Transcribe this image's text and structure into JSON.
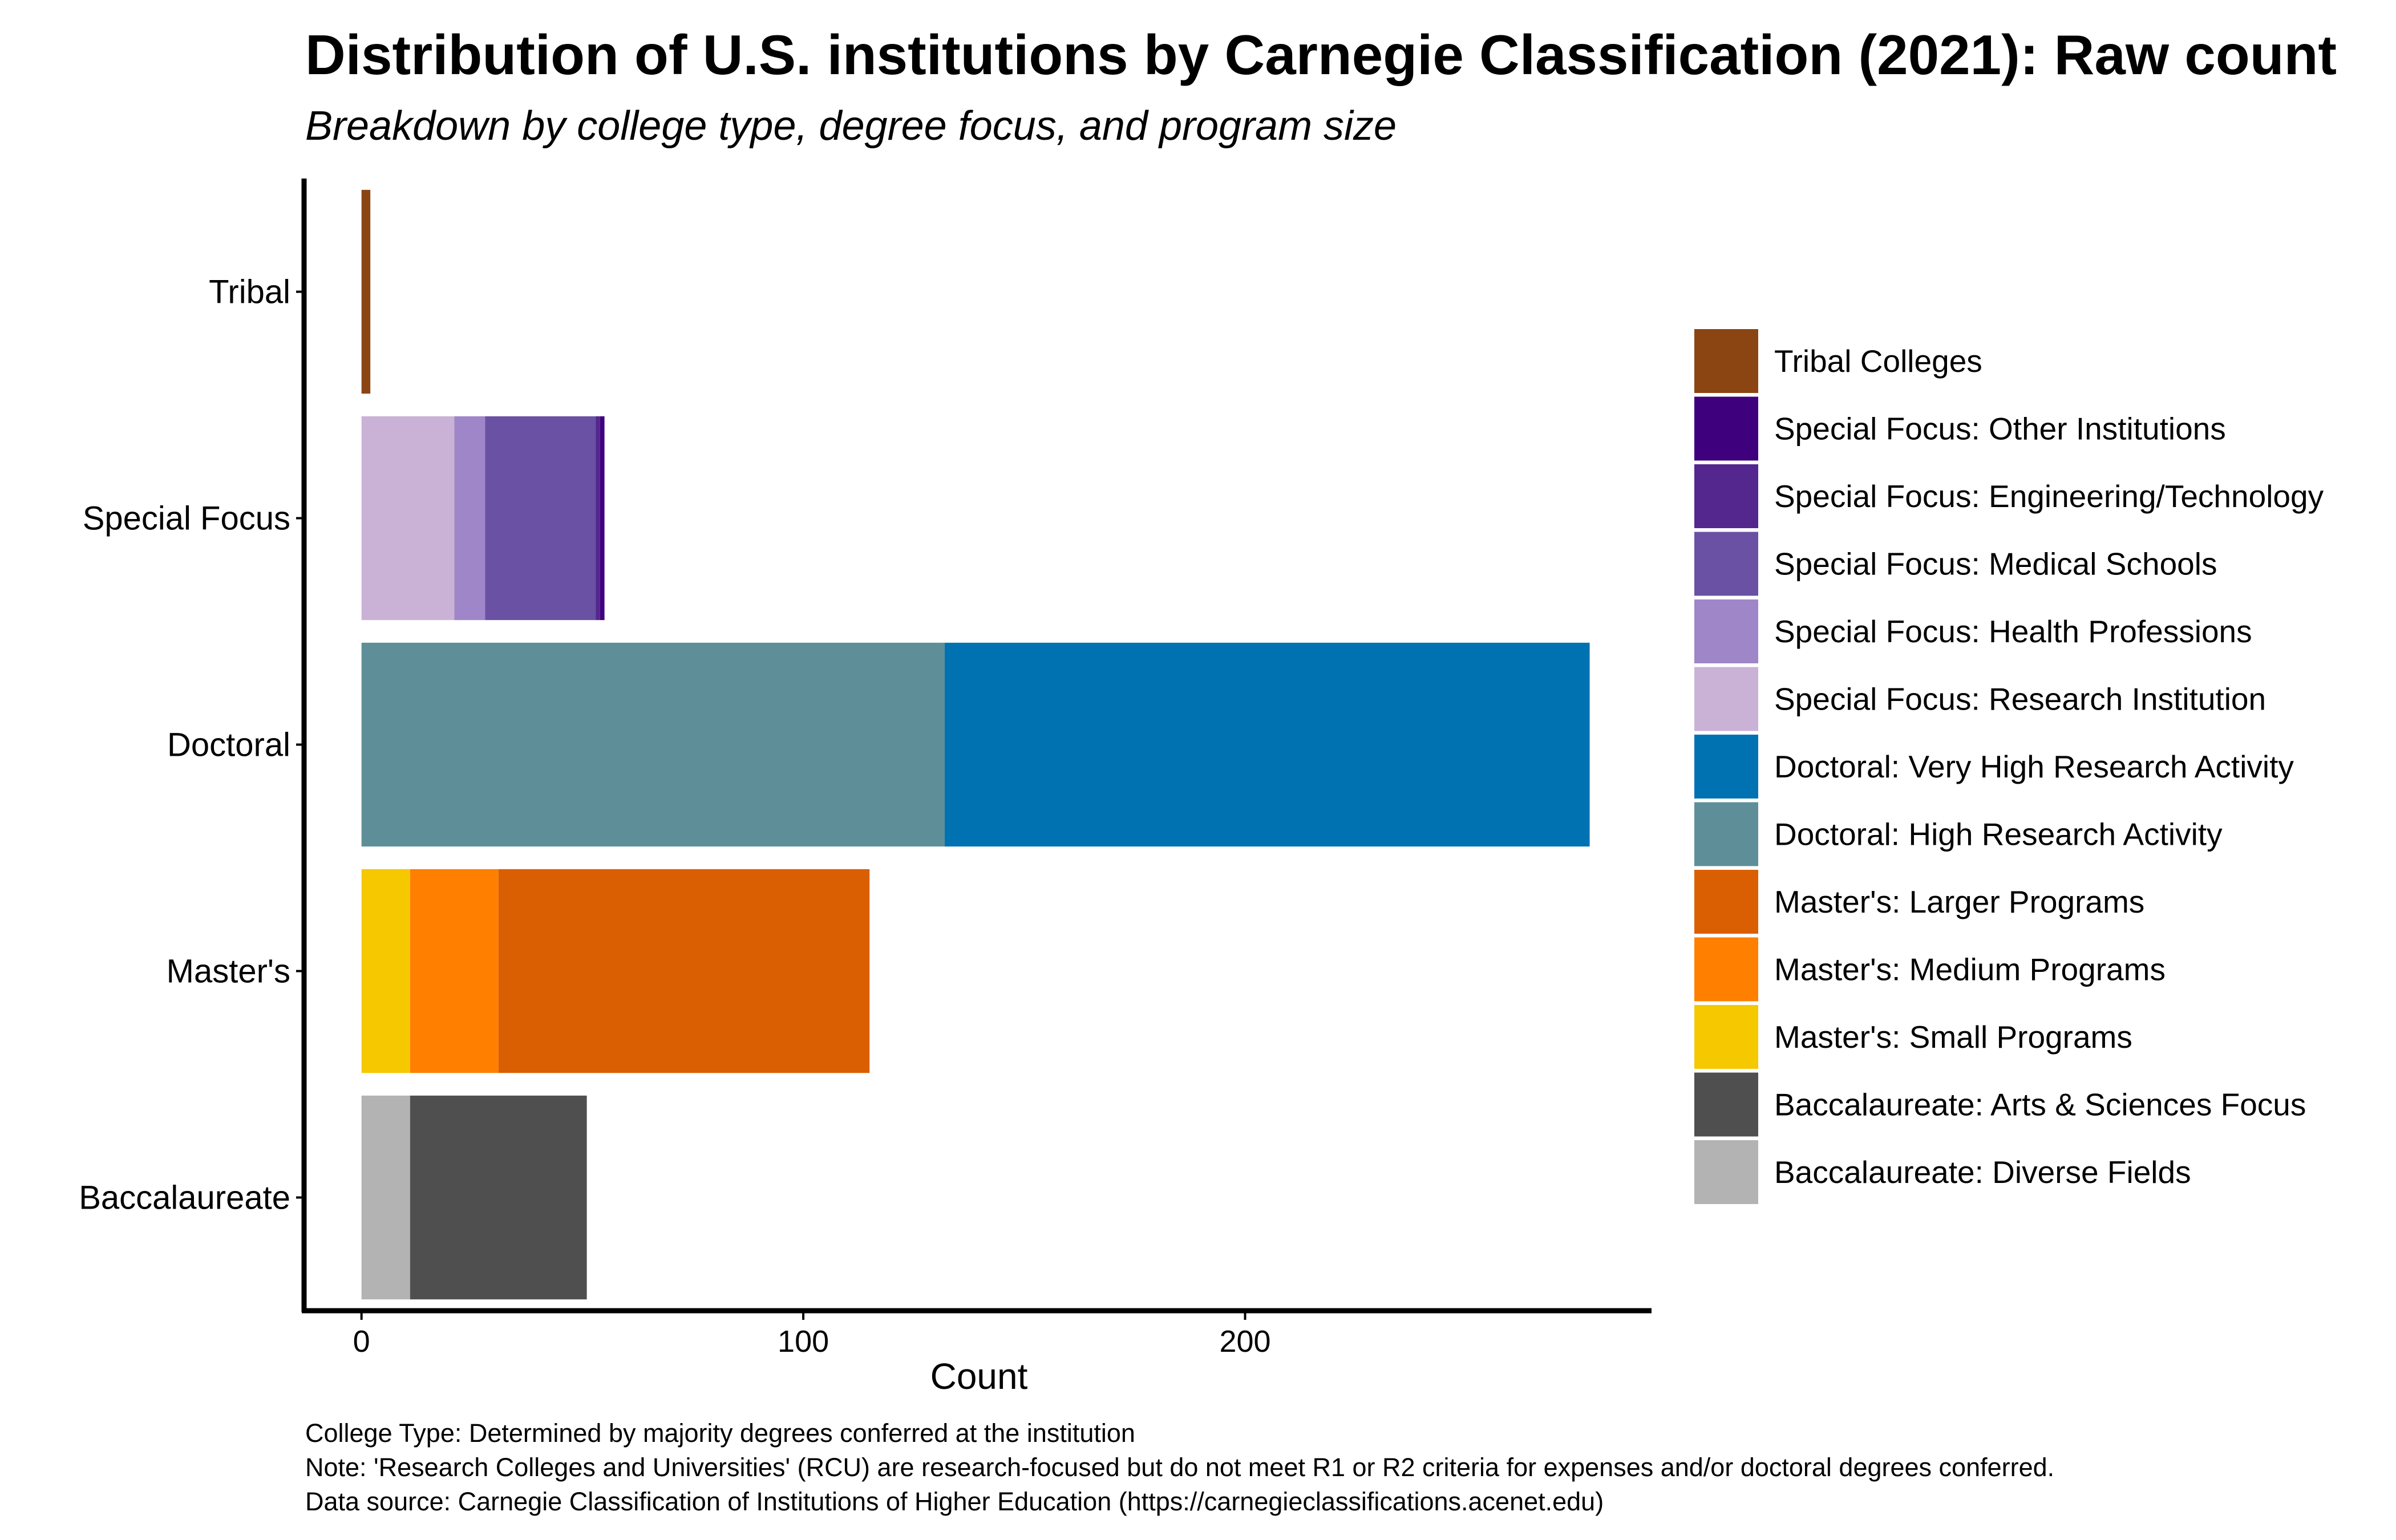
{
  "chart_data": {
    "type": "bar",
    "orientation": "horizontal",
    "stacked": true,
    "title": "Distribution of U.S. institutions by Carnegie Classification (2021): Raw count",
    "subtitle": "Breakdown by college type, degree focus, and program size",
    "xlabel": "Count",
    "ylabel": "",
    "xlim": [
      -13,
      292
    ],
    "x_ticks": [
      0,
      100,
      200
    ],
    "grid": false,
    "legend_position": "right",
    "categories": [
      "Baccalaureate",
      "Master's",
      "Doctoral",
      "Special Focus",
      "Tribal"
    ],
    "series": [
      {
        "name": "Baccalaureate: Diverse Fields",
        "color": "#B3B3B3",
        "values": [
          11,
          0,
          0,
          0,
          0
        ]
      },
      {
        "name": "Baccalaureate: Arts & Sciences Focus",
        "color": "#4F4F4F",
        "values": [
          40,
          0,
          0,
          0,
          0
        ]
      },
      {
        "name": "Master's: Small Programs",
        "color": "#F5C800",
        "values": [
          0,
          11,
          0,
          0,
          0
        ]
      },
      {
        "name": "Master's: Medium Programs",
        "color": "#FF7F00",
        "values": [
          0,
          20,
          0,
          0,
          0
        ]
      },
      {
        "name": "Master's: Larger Programs",
        "color": "#D95F02",
        "values": [
          0,
          84,
          0,
          0,
          0
        ]
      },
      {
        "name": "Doctoral: High Research Activity",
        "color": "#5E8F98",
        "values": [
          0,
          0,
          132,
          0,
          0
        ]
      },
      {
        "name": "Doctoral: Very High Research Activity",
        "color": "#0072B2",
        "values": [
          0,
          0,
          146,
          0,
          0
        ]
      },
      {
        "name": "Special Focus: Research Institution",
        "color": "#CAB2D6",
        "values": [
          0,
          0,
          0,
          21,
          0
        ]
      },
      {
        "name": "Special Focus: Health Professions",
        "color": "#9E86C8",
        "values": [
          0,
          0,
          0,
          7,
          0
        ]
      },
      {
        "name": "Special Focus: Medical Schools",
        "color": "#6A51A3",
        "values": [
          0,
          0,
          0,
          25,
          0
        ]
      },
      {
        "name": "Special Focus: Engineering/Technology",
        "color": "#54278F",
        "values": [
          0,
          0,
          0,
          1,
          0
        ]
      },
      {
        "name": "Special Focus: Other Institutions",
        "color": "#3F007D",
        "values": [
          0,
          0,
          0,
          1,
          0
        ]
      },
      {
        "name": "Tribal Colleges",
        "color": "#8B4513",
        "values": [
          0,
          0,
          0,
          0,
          2
        ]
      }
    ],
    "legend_order": [
      "Tribal Colleges",
      "Special Focus: Other Institutions",
      "Special Focus: Engineering/Technology",
      "Special Focus: Medical Schools",
      "Special Focus: Health Professions",
      "Special Focus: Research Institution",
      "Doctoral: Very High Research Activity",
      "Doctoral: High Research Activity",
      "Master's: Larger Programs",
      "Master's: Medium Programs",
      "Master's: Small Programs",
      "Baccalaureate: Arts & Sciences Focus",
      "Baccalaureate: Diverse Fields"
    ],
    "caption": [
      "College Type: Determined by majority degrees conferred at the institution",
      "Note: 'Research Colleges and Universities' (RCU) are research-focused but do not meet R1 or R2 criteria for expenses and/or doctoral degrees conferred.",
      "Data source: Carnegie Classification of Institutions of Higher Education (https://carnegieclassifications.acenet.edu)"
    ]
  }
}
